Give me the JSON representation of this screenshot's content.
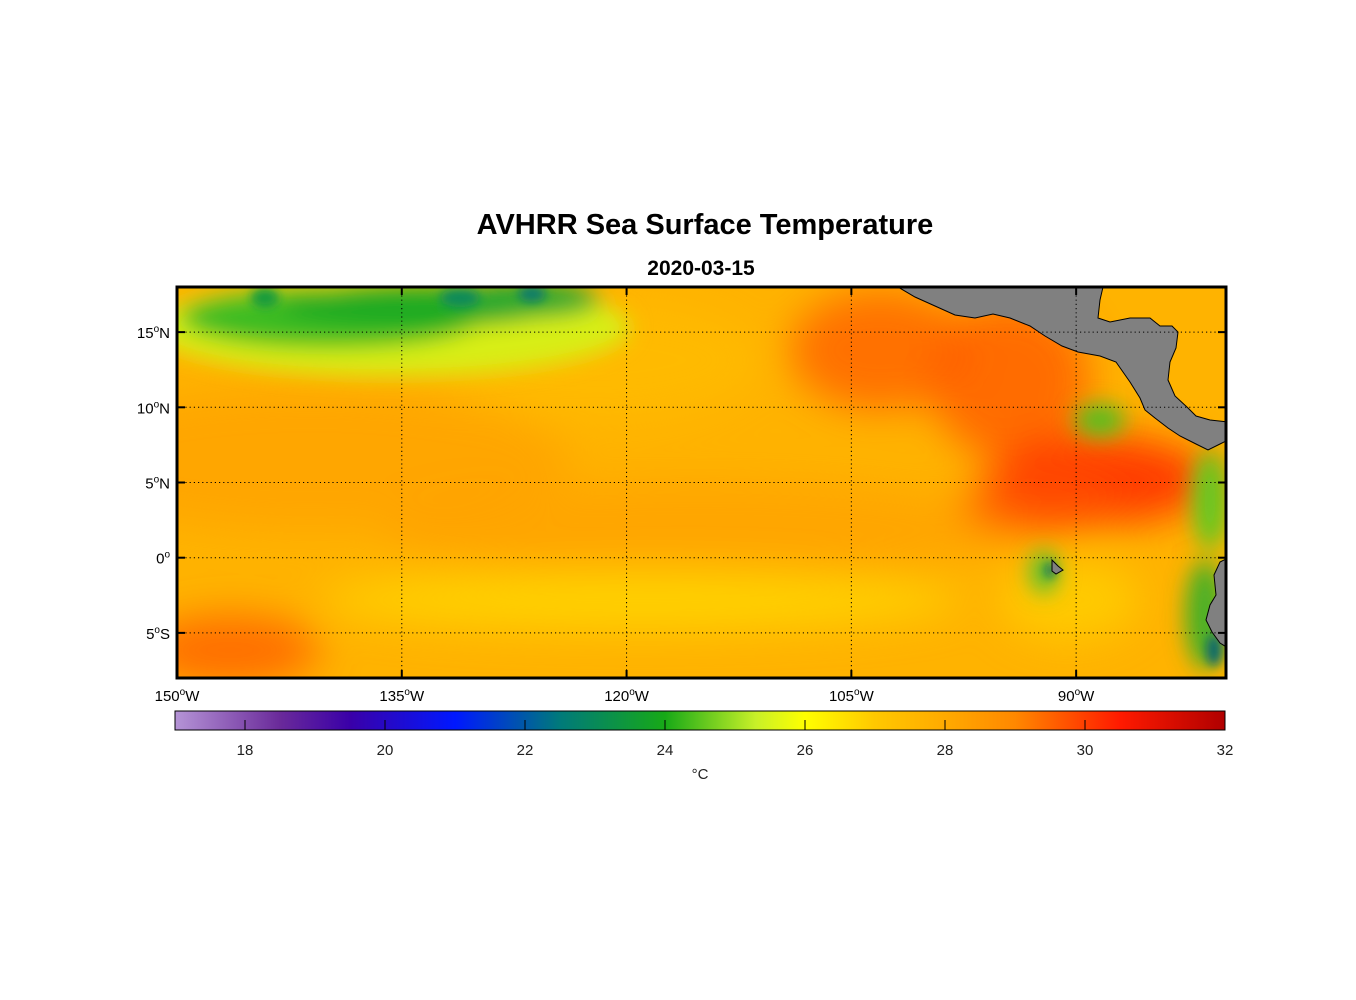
{
  "title": "AVHRR Sea Surface Temperature",
  "subtitle": "2020-03-15",
  "map": {
    "lon_range": [
      -150,
      -80
    ],
    "lat_range": [
      -8,
      18
    ],
    "lon_ticks": [
      {
        "value": -150,
        "num": "150",
        "hemi": "W"
      },
      {
        "value": -135,
        "num": "135",
        "hemi": "W"
      },
      {
        "value": -120,
        "num": "120",
        "hemi": "W"
      },
      {
        "value": -105,
        "num": "105",
        "hemi": "W"
      },
      {
        "value": -90,
        "num": "90",
        "hemi": "W"
      }
    ],
    "lat_ticks": [
      {
        "value": 15,
        "num": "15",
        "hemi": "N"
      },
      {
        "value": 10,
        "num": "10",
        "hemi": "N"
      },
      {
        "value": 5,
        "num": "5",
        "hemi": "N"
      },
      {
        "value": 0,
        "num": "0",
        "hemi": ""
      },
      {
        "value": -5,
        "num": "5",
        "hemi": "S"
      }
    ],
    "degree_symbol": "o",
    "land_color": "#808080",
    "grid": "dotted",
    "background_color": "#ffb300"
  },
  "colorbar": {
    "range": [
      17,
      32
    ],
    "ticks": [
      "18",
      "20",
      "22",
      "24",
      "26",
      "28",
      "30",
      "32"
    ],
    "label": "°C",
    "stops": [
      {
        "v": 17,
        "color": "#b594d6"
      },
      {
        "v": 18.5,
        "color": "#6a2a9a"
      },
      {
        "v": 19.5,
        "color": "#3a00a8"
      },
      {
        "v": 21,
        "color": "#0018ff"
      },
      {
        "v": 22.5,
        "color": "#007a7a"
      },
      {
        "v": 24,
        "color": "#17a917"
      },
      {
        "v": 25.3,
        "color": "#c8f028"
      },
      {
        "v": 26,
        "color": "#ffff00"
      },
      {
        "v": 27,
        "color": "#ffc800"
      },
      {
        "v": 28,
        "color": "#ffaa00"
      },
      {
        "v": 29,
        "color": "#ff8800"
      },
      {
        "v": 30.5,
        "color": "#ff1a00"
      },
      {
        "v": 32,
        "color": "#b00000"
      }
    ]
  }
}
